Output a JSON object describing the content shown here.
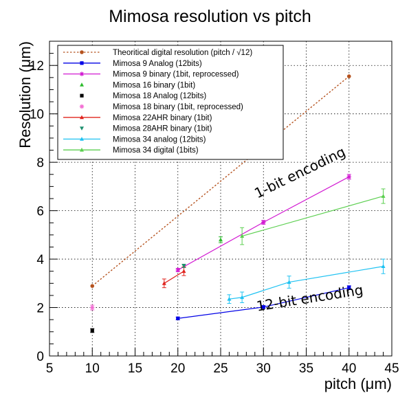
{
  "chart_data": {
    "type": "scatter",
    "title": "Mimosa resolution vs pitch",
    "xlabel": "pitch (μm)",
    "ylabel": "Resolution (μm)",
    "xlim": [
      5,
      45
    ],
    "ylim": [
      0,
      13
    ],
    "x_ticks": [
      5,
      10,
      15,
      20,
      25,
      30,
      35,
      40,
      45
    ],
    "y_ticks": [
      0,
      2,
      4,
      6,
      8,
      10,
      12
    ],
    "grid": true,
    "legend_placement": "top-left",
    "annotations": [
      {
        "text": "1-bit encoding",
        "x": 34.5,
        "y": 7.4,
        "angle": -26
      },
      {
        "text": "12-bit encoding",
        "x": 35.5,
        "y": 2.2,
        "angle": -9
      }
    ],
    "series": [
      {
        "name": "Theoritical digital resolution (pitch / √12)",
        "color": "#b5521e",
        "style": "dotted",
        "marker": "circle",
        "x": [
          10,
          40
        ],
        "y": [
          2.89,
          11.55
        ],
        "err": [
          0,
          0
        ]
      },
      {
        "name": "Mimosa 9 Analog (12bits)",
        "color": "#0000e6",
        "style": "solid",
        "marker": "square",
        "x": [
          20,
          30,
          40
        ],
        "y": [
          1.55,
          2.02,
          2.82
        ],
        "err": [
          0.06,
          0.06,
          0.08
        ]
      },
      {
        "name": "Mimosa 9 binary (1bit, reprocessed)",
        "color": "#d21ad2",
        "style": "solid",
        "marker": "star",
        "x": [
          20,
          30,
          40
        ],
        "y": [
          3.55,
          5.52,
          7.4
        ],
        "err": [
          0.07,
          0.08,
          0.1
        ]
      },
      {
        "name": "Mimosa 16 binary (1bit)",
        "color": "#2dbb2d",
        "style": "none",
        "marker": "triangle",
        "x": [
          25
        ],
        "y": [
          4.8
        ],
        "err": [
          0.12
        ]
      },
      {
        "name": "Mimosa 18 Analog (12bits)",
        "color": "#000000",
        "style": "none",
        "marker": "square",
        "x": [
          10
        ],
        "y": [
          1.05
        ],
        "err": [
          0.08
        ]
      },
      {
        "name": "Mimosa 18 binary (1bit, reprocessed)",
        "color": "#f26ad2",
        "style": "none",
        "marker": "star",
        "x": [
          10
        ],
        "y": [
          2.0
        ],
        "err": [
          0.1
        ]
      },
      {
        "name": "Mimosa 22AHR binary (1bit)",
        "color": "#e0241e",
        "style": "solid",
        "marker": "triangle",
        "x": [
          18.4,
          20.7
        ],
        "y": [
          3.0,
          3.5
        ],
        "err": [
          0.18,
          0.18
        ]
      },
      {
        "name": "Mimosa 28AHR binary (1bit)",
        "color": "#1e8f6e",
        "style": "none",
        "marker": "triangle-down",
        "x": [
          20.7
        ],
        "y": [
          3.72
        ],
        "err": [
          0.07
        ]
      },
      {
        "name": "Mimosa 34 analog (12bits)",
        "color": "#1ec2f2",
        "style": "solid",
        "marker": "triangle",
        "x": [
          26,
          27.5,
          33,
          44
        ],
        "y": [
          2.35,
          2.42,
          3.05,
          3.7
        ],
        "err": [
          0.18,
          0.22,
          0.25,
          0.3
        ]
      },
      {
        "name": "Mimosa 34 digital (1bits)",
        "color": "#5bcf4f",
        "style": "solid",
        "marker": "triangle",
        "x": [
          27.5,
          44
        ],
        "y": [
          4.95,
          6.6
        ],
        "err": [
          0.35,
          0.3
        ]
      }
    ]
  }
}
